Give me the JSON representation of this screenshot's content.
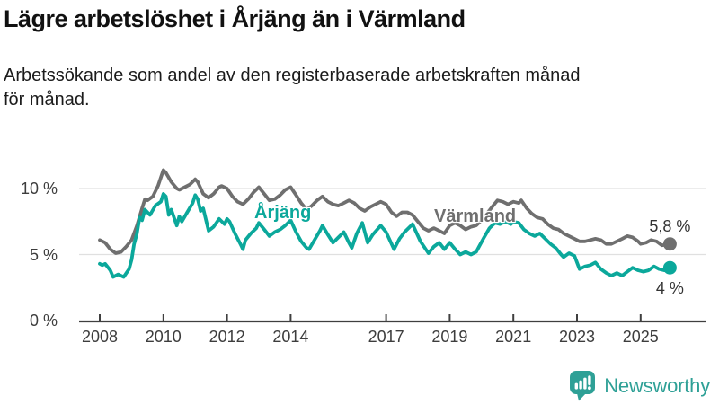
{
  "header": {
    "title": "Lägre arbetslöshet i Årjäng än i Värmland",
    "subtitle_line1": "Arbetssökande som andel av den registerbaserade arbetskraften månad",
    "subtitle_line2": "för månad."
  },
  "footer": {
    "brand": "Newsworthy",
    "brand_color": "#2EA096"
  },
  "chart_data": {
    "type": "line",
    "title": "Lägre arbetslöshet i Årjäng än i Värmland",
    "subtitle": "Arbetssökande som andel av den registerbaserade arbetskraften månad för månad.",
    "xlabel": "",
    "ylabel": "",
    "grid": "horizontal",
    "ylim": [
      0,
      12.5
    ],
    "xlim": [
      2007.4,
      2026.9
    ],
    "legend": "inline-line-labels",
    "y_ticks": [
      {
        "label": "0 %",
        "value": 0
      },
      {
        "label": "5 %",
        "value": 5
      },
      {
        "label": "10 %",
        "value": 10
      }
    ],
    "x_ticks": [
      {
        "label": "2008",
        "value": 2008
      },
      {
        "label": "2010",
        "value": 2010
      },
      {
        "label": "2012",
        "value": 2012
      },
      {
        "label": "2014",
        "value": 2014
      },
      {
        "label": "2017",
        "value": 2017
      },
      {
        "label": "2019",
        "value": 2019
      },
      {
        "label": "2021",
        "value": 2021
      },
      {
        "label": "2023",
        "value": 2023
      },
      {
        "label": "2025",
        "value": 2025
      }
    ],
    "series": [
      {
        "id": "varmland",
        "name": "Värmland",
        "color": "#6f6f6f",
        "end_label": "5,8 %",
        "points": [
          [
            2008.0,
            6.1
          ],
          [
            2008.17,
            5.9
          ],
          [
            2008.33,
            5.4
          ],
          [
            2008.5,
            5.1
          ],
          [
            2008.67,
            5.2
          ],
          [
            2008.83,
            5.6
          ],
          [
            2009.0,
            6.1
          ],
          [
            2009.17,
            7.2
          ],
          [
            2009.33,
            8.5
          ],
          [
            2009.42,
            9.2
          ],
          [
            2009.5,
            9.1
          ],
          [
            2009.67,
            9.4
          ],
          [
            2009.83,
            10.2
          ],
          [
            2010.0,
            11.4
          ],
          [
            2010.08,
            11.2
          ],
          [
            2010.25,
            10.5
          ],
          [
            2010.42,
            10.0
          ],
          [
            2010.5,
            9.9
          ],
          [
            2010.67,
            10.1
          ],
          [
            2010.83,
            10.3
          ],
          [
            2011.0,
            10.7
          ],
          [
            2011.08,
            10.5
          ],
          [
            2011.25,
            9.6
          ],
          [
            2011.42,
            9.3
          ],
          [
            2011.58,
            9.6
          ],
          [
            2011.75,
            10.1
          ],
          [
            2011.83,
            10.2
          ],
          [
            2012.0,
            10.0
          ],
          [
            2012.17,
            9.4
          ],
          [
            2012.33,
            9.0
          ],
          [
            2012.5,
            8.8
          ],
          [
            2012.67,
            9.2
          ],
          [
            2012.83,
            9.7
          ],
          [
            2013.0,
            10.1
          ],
          [
            2013.17,
            9.6
          ],
          [
            2013.33,
            9.1
          ],
          [
            2013.5,
            9.2
          ],
          [
            2013.67,
            9.5
          ],
          [
            2013.83,
            9.9
          ],
          [
            2014.0,
            10.1
          ],
          [
            2014.17,
            9.5
          ],
          [
            2014.33,
            8.9
          ],
          [
            2014.5,
            8.4
          ],
          [
            2014.67,
            8.7
          ],
          [
            2014.83,
            9.1
          ],
          [
            2015.0,
            9.4
          ],
          [
            2015.17,
            9.0
          ],
          [
            2015.33,
            8.8
          ],
          [
            2015.5,
            8.7
          ],
          [
            2015.67,
            8.9
          ],
          [
            2015.83,
            9.1
          ],
          [
            2016.0,
            8.9
          ],
          [
            2016.17,
            8.5
          ],
          [
            2016.33,
            8.3
          ],
          [
            2016.5,
            8.6
          ],
          [
            2016.67,
            8.8
          ],
          [
            2016.83,
            9.0
          ],
          [
            2017.0,
            8.8
          ],
          [
            2017.17,
            8.2
          ],
          [
            2017.33,
            7.9
          ],
          [
            2017.5,
            8.2
          ],
          [
            2017.67,
            8.2
          ],
          [
            2017.83,
            8.0
          ],
          [
            2018.0,
            7.5
          ],
          [
            2018.17,
            7.0
          ],
          [
            2018.33,
            6.8
          ],
          [
            2018.5,
            7.0
          ],
          [
            2018.67,
            6.8
          ],
          [
            2018.83,
            6.6
          ],
          [
            2019.0,
            7.2
          ],
          [
            2019.17,
            7.4
          ],
          [
            2019.33,
            7.2
          ],
          [
            2019.5,
            6.9
          ],
          [
            2019.67,
            7.1
          ],
          [
            2019.83,
            7.2
          ],
          [
            2020.0,
            7.6
          ],
          [
            2020.17,
            8.1
          ],
          [
            2020.33,
            8.6
          ],
          [
            2020.5,
            9.1
          ],
          [
            2020.67,
            9.0
          ],
          [
            2020.83,
            8.8
          ],
          [
            2021.0,
            9.0
          ],
          [
            2021.17,
            8.9
          ],
          [
            2021.25,
            9.1
          ],
          [
            2021.42,
            8.5
          ],
          [
            2021.58,
            8.1
          ],
          [
            2021.75,
            7.8
          ],
          [
            2021.92,
            7.7
          ],
          [
            2022.08,
            7.3
          ],
          [
            2022.25,
            7.0
          ],
          [
            2022.42,
            6.9
          ],
          [
            2022.58,
            6.6
          ],
          [
            2022.75,
            6.4
          ],
          [
            2022.92,
            6.2
          ],
          [
            2023.08,
            6.0
          ],
          [
            2023.25,
            6.0
          ],
          [
            2023.42,
            6.1
          ],
          [
            2023.58,
            6.2
          ],
          [
            2023.75,
            6.1
          ],
          [
            2023.92,
            5.8
          ],
          [
            2024.08,
            5.8
          ],
          [
            2024.25,
            6.0
          ],
          [
            2024.42,
            6.2
          ],
          [
            2024.58,
            6.4
          ],
          [
            2024.75,
            6.3
          ],
          [
            2024.92,
            6.0
          ],
          [
            2025.0,
            5.8
          ],
          [
            2025.17,
            5.9
          ],
          [
            2025.33,
            6.1
          ],
          [
            2025.5,
            6.0
          ],
          [
            2025.67,
            5.7
          ],
          [
            2025.92,
            5.8
          ]
        ]
      },
      {
        "id": "arjang",
        "name": "Årjäng",
        "color": "#0BA89B",
        "end_label": "4 %",
        "points": [
          [
            2008.0,
            4.3
          ],
          [
            2008.08,
            4.2
          ],
          [
            2008.17,
            4.3
          ],
          [
            2008.33,
            3.8
          ],
          [
            2008.42,
            3.3
          ],
          [
            2008.58,
            3.5
          ],
          [
            2008.75,
            3.3
          ],
          [
            2008.92,
            3.9
          ],
          [
            2009.0,
            4.6
          ],
          [
            2009.08,
            5.8
          ],
          [
            2009.17,
            6.6
          ],
          [
            2009.25,
            7.8
          ],
          [
            2009.33,
            7.6
          ],
          [
            2009.42,
            8.4
          ],
          [
            2009.58,
            8.0
          ],
          [
            2009.75,
            8.7
          ],
          [
            2009.92,
            9.0
          ],
          [
            2010.0,
            9.6
          ],
          [
            2010.08,
            9.4
          ],
          [
            2010.17,
            8.0
          ],
          [
            2010.25,
            8.4
          ],
          [
            2010.42,
            7.2
          ],
          [
            2010.5,
            7.9
          ],
          [
            2010.58,
            7.5
          ],
          [
            2010.75,
            8.2
          ],
          [
            2010.92,
            8.9
          ],
          [
            2011.0,
            9.5
          ],
          [
            2011.08,
            9.2
          ],
          [
            2011.17,
            8.3
          ],
          [
            2011.25,
            8.5
          ],
          [
            2011.42,
            6.8
          ],
          [
            2011.58,
            7.1
          ],
          [
            2011.75,
            7.7
          ],
          [
            2011.92,
            7.3
          ],
          [
            2012.0,
            7.7
          ],
          [
            2012.08,
            7.5
          ],
          [
            2012.25,
            6.6
          ],
          [
            2012.42,
            5.8
          ],
          [
            2012.5,
            5.4
          ],
          [
            2012.58,
            6.1
          ],
          [
            2012.75,
            6.6
          ],
          [
            2012.92,
            7.0
          ],
          [
            2013.0,
            7.4
          ],
          [
            2013.17,
            6.9
          ],
          [
            2013.33,
            6.4
          ],
          [
            2013.5,
            6.7
          ],
          [
            2013.67,
            6.9
          ],
          [
            2013.83,
            7.2
          ],
          [
            2014.0,
            7.6
          ],
          [
            2014.17,
            6.7
          ],
          [
            2014.33,
            6.0
          ],
          [
            2014.5,
            5.5
          ],
          [
            2014.58,
            5.4
          ],
          [
            2014.75,
            6.1
          ],
          [
            2014.92,
            6.8
          ],
          [
            2015.0,
            7.2
          ],
          [
            2015.17,
            6.5
          ],
          [
            2015.33,
            5.9
          ],
          [
            2015.5,
            6.3
          ],
          [
            2015.67,
            6.7
          ],
          [
            2015.83,
            5.9
          ],
          [
            2015.92,
            5.5
          ],
          [
            2016.08,
            6.6
          ],
          [
            2016.25,
            7.4
          ],
          [
            2016.42,
            5.9
          ],
          [
            2016.58,
            6.5
          ],
          [
            2016.83,
            7.2
          ],
          [
            2017.0,
            6.7
          ],
          [
            2017.25,
            5.4
          ],
          [
            2017.42,
            6.2
          ],
          [
            2017.58,
            6.7
          ],
          [
            2017.83,
            7.3
          ],
          [
            2018.08,
            6.0
          ],
          [
            2018.33,
            5.1
          ],
          [
            2018.5,
            5.6
          ],
          [
            2018.67,
            5.9
          ],
          [
            2018.83,
            5.4
          ],
          [
            2019.0,
            5.9
          ],
          [
            2019.17,
            5.4
          ],
          [
            2019.33,
            5.0
          ],
          [
            2019.5,
            5.2
          ],
          [
            2019.67,
            5.0
          ],
          [
            2019.83,
            5.2
          ],
          [
            2019.92,
            5.6
          ],
          [
            2020.08,
            6.3
          ],
          [
            2020.25,
            7.0
          ],
          [
            2020.42,
            7.4
          ],
          [
            2020.58,
            7.3
          ],
          [
            2020.75,
            7.5
          ],
          [
            2020.92,
            7.3
          ],
          [
            2021.0,
            7.5
          ],
          [
            2021.17,
            7.4
          ],
          [
            2021.33,
            6.9
          ],
          [
            2021.5,
            6.6
          ],
          [
            2021.67,
            6.4
          ],
          [
            2021.83,
            6.6
          ],
          [
            2022.0,
            6.2
          ],
          [
            2022.17,
            5.8
          ],
          [
            2022.33,
            5.5
          ],
          [
            2022.5,
            5.0
          ],
          [
            2022.58,
            4.8
          ],
          [
            2022.75,
            5.1
          ],
          [
            2022.92,
            4.9
          ],
          [
            2023.08,
            3.9
          ],
          [
            2023.25,
            4.1
          ],
          [
            2023.42,
            4.2
          ],
          [
            2023.58,
            4.4
          ],
          [
            2023.75,
            3.9
          ],
          [
            2023.92,
            3.6
          ],
          [
            2024.08,
            3.4
          ],
          [
            2024.25,
            3.6
          ],
          [
            2024.42,
            3.4
          ],
          [
            2024.58,
            3.7
          ],
          [
            2024.75,
            4.0
          ],
          [
            2024.92,
            3.8
          ],
          [
            2025.08,
            3.7
          ],
          [
            2025.25,
            3.8
          ],
          [
            2025.42,
            4.1
          ],
          [
            2025.58,
            3.9
          ],
          [
            2025.75,
            3.8
          ],
          [
            2025.92,
            4.0
          ]
        ]
      }
    ]
  }
}
